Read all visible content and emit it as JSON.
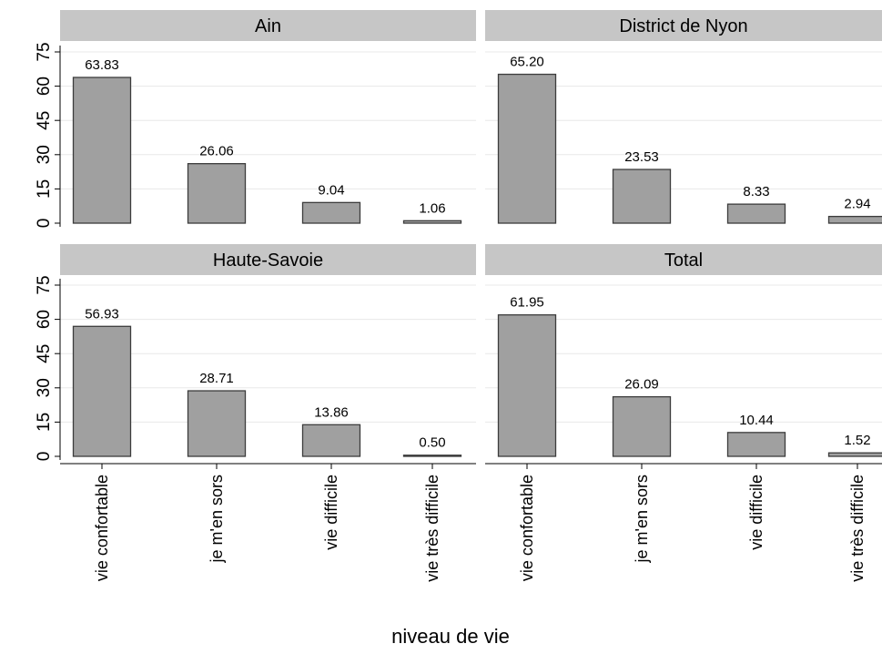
{
  "chart_data": {
    "type": "bar",
    "xlabel": "niveau de vie",
    "ylabel": "",
    "ylim": [
      0,
      75
    ],
    "yticks": [
      0,
      15,
      30,
      45,
      60,
      75
    ],
    "grid": true,
    "categories": [
      "vie confortable",
      "je m'en sors",
      "vie difficile",
      "vie très difficile"
    ],
    "panels": [
      {
        "title": "Ain",
        "values": [
          63.83,
          26.06,
          9.04,
          1.06
        ],
        "labels": [
          "63.83",
          "26.06",
          "9.04",
          "1.06"
        ]
      },
      {
        "title": "District de Nyon",
        "values": [
          65.2,
          23.53,
          8.33,
          2.94
        ],
        "labels": [
          "65.20",
          "23.53",
          "8.33",
          "2.94"
        ]
      },
      {
        "title": "Haute-Savoie",
        "values": [
          56.93,
          28.71,
          13.86,
          0.5
        ],
        "labels": [
          "56.93",
          "28.71",
          "13.86",
          "0.50"
        ]
      },
      {
        "title": "Total",
        "values": [
          61.95,
          26.09,
          10.44,
          1.52
        ],
        "labels": [
          "61.95",
          "26.09",
          "10.44",
          "1.52"
        ]
      }
    ],
    "colors": {
      "bar_fill": "#a0a0a0",
      "bar_stroke": "#3c3c3c",
      "header_fill": "#c6c6c6",
      "grid": "#e8e8e8"
    }
  }
}
